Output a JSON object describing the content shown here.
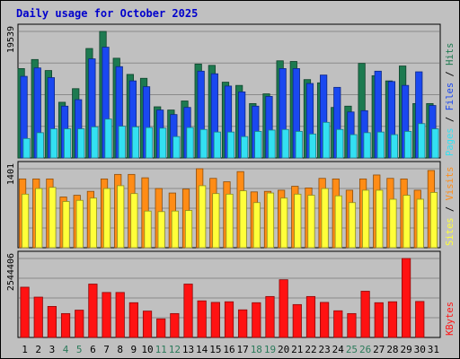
{
  "chart_data": {
    "type": "bar",
    "title": "Daily usage for October 2025",
    "categories": [
      "1",
      "2",
      "3",
      "4",
      "5",
      "6",
      "7",
      "8",
      "9",
      "10",
      "11",
      "12",
      "13",
      "14",
      "15",
      "16",
      "17",
      "18",
      "19",
      "20",
      "21",
      "22",
      "23",
      "24",
      "25",
      "26",
      "27",
      "28",
      "29",
      "30",
      "31"
    ],
    "weekend_days": [
      "4",
      "5",
      "11",
      "12",
      "18",
      "19",
      "25",
      "26"
    ],
    "grid": true,
    "panels": [
      {
        "id": "top",
        "ylabel": "19539",
        "ylim": [
          0,
          19539
        ],
        "side_label": [
          "Pages",
          "Files",
          "Hits"
        ],
        "series": [
          {
            "name": "Hits",
            "color": "#1d7a50",
            "values": [
              13800,
              15200,
              13500,
              8600,
              10700,
              16900,
              19539,
              15400,
              12900,
              12300,
              7900,
              7400,
              8800,
              14500,
              14300,
              11700,
              11200,
              8400,
              9900,
              15000,
              14900,
              12100,
              11600,
              7800,
              8000,
              14600,
              12700,
              11900,
              14200,
              8400,
              8400
            ]
          },
          {
            "name": "Files",
            "color": "#1a48f0",
            "values": [
              12600,
              13900,
              12400,
              8000,
              9000,
              15300,
              17100,
              14100,
              11900,
              11000,
              7400,
              6700,
              7800,
              13400,
              13000,
              11100,
              10200,
              8000,
              9500,
              13800,
              13800,
              11500,
              12800,
              10900,
              7100,
              7300,
              13400,
              11800,
              11200,
              13300,
              8100
            ]
          },
          {
            "name": "Pages",
            "color": "#33e0f2",
            "values": [
              3000,
              3900,
              4500,
              4500,
              4500,
              4800,
              6000,
              4900,
              4800,
              4700,
              4600,
              3300,
              4700,
              4400,
              4000,
              4000,
              3300,
              4100,
              4300,
              4400,
              4100,
              3700,
              5500,
              4400,
              3600,
              3900,
              4000,
              3600,
              4100,
              5300,
              4500
            ]
          }
        ]
      },
      {
        "id": "middle",
        "ylabel": "1401",
        "ylim": [
          0,
          1401
        ],
        "side_label": [
          "Sites",
          "Visits"
        ],
        "series": [
          {
            "name": "Visits",
            "color": "#ff8c16",
            "values": [
              1220,
              1220,
              1220,
              900,
              930,
              1000,
              1220,
              1300,
              1300,
              1240,
              1050,
              970,
              1040,
              1401,
              1230,
              1170,
              1350,
              990,
              1000,
              1020,
              1090,
              1060,
              1230,
              1220,
              1020,
              1220,
              1290,
              1230,
              1220,
              1020,
              1370
            ]
          },
          {
            "name": "Sites",
            "color": "#ffff3a",
            "values": [
              950,
              1050,
              1070,
              820,
              840,
              880,
              1050,
              1100,
              960,
              650,
              640,
              650,
              660,
              1100,
              960,
              950,
              1010,
              800,
              970,
              880,
              950,
              930,
              1050,
              920,
              800,
              1020,
              1020,
              860,
              930,
              860,
              980
            ]
          }
        ]
      },
      {
        "id": "bottom",
        "ylabel": "2544406",
        "ylim": [
          0,
          2544406
        ],
        "side_label": [
          "KBytes"
        ],
        "series": [
          {
            "name": "KBytes",
            "color": "#ff1212",
            "values": [
              1620000,
              1300000,
              1000000,
              770000,
              880000,
              1720000,
              1450000,
              1450000,
              1120000,
              850000,
              600000,
              770000,
              1720000,
              1180000,
              1130000,
              1150000,
              890000,
              1120000,
              1320000,
              1860000,
              1060000,
              1320000,
              1130000,
              860000,
              770000,
              1490000,
              1120000,
              1150000,
              2544406,
              1160000,
              0
            ]
          }
        ]
      }
    ]
  },
  "colors": {
    "background": "#c0c0c0",
    "panel": "#c0c0c0",
    "gridline": "#8a8a8a",
    "title": "#0000cc",
    "weekday_tick": "#000000",
    "weekend_tick": "#2b7a5a"
  }
}
